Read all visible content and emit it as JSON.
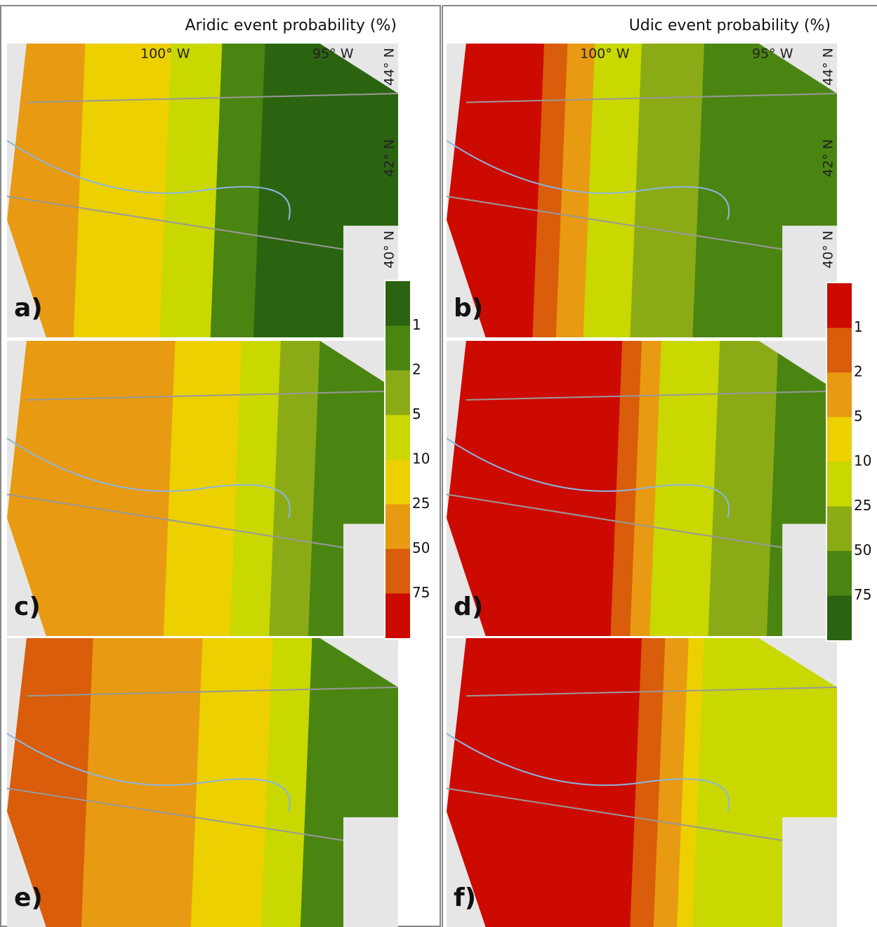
{
  "titles": [
    "Aridic event probability (%)",
    "Udic event probability (%)"
  ],
  "panels": [
    {
      "label": "a)"
    },
    {
      "label": "b)"
    },
    {
      "label": "c)"
    },
    {
      "label": "d)"
    },
    {
      "label": "e)"
    },
    {
      "label": "f)"
    }
  ],
  "axis_labels": {
    "lon": [
      "100° W",
      "95° W"
    ],
    "lat": [
      "44° N",
      "42° N",
      "40° N"
    ]
  },
  "legends": [
    {
      "colors": [
        "#2b6410",
        "#4a8512",
        "#8bab16",
        "#c8d800",
        "#ecd000",
        "#e89a12",
        "#d95d0a",
        "#cc0a00"
      ],
      "labels": [
        "1",
        "2",
        "5",
        "10",
        "25",
        "50",
        "75"
      ]
    },
    {
      "colors": [
        "#cc0a00",
        "#d95d0a",
        "#e89a12",
        "#ecd000",
        "#c8d800",
        "#8bab16",
        "#4a8512",
        "#2b6410"
      ],
      "labels": [
        "1",
        "2",
        "5",
        "10",
        "25",
        "50",
        "75"
      ]
    }
  ]
}
